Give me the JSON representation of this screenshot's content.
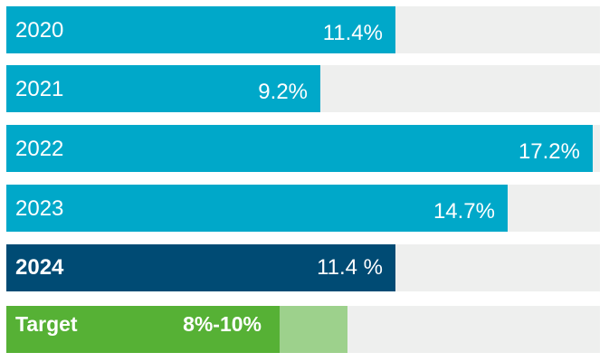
{
  "colors": {
    "track": "#eeefee",
    "history": "#00a8c9",
    "current": "#004b74",
    "target": "#56b135",
    "target_range": "#9dd18c"
  },
  "chart_data": {
    "type": "bar",
    "orientation": "horizontal",
    "title": "",
    "xlabel": "",
    "ylabel": "",
    "xlim": [
      0,
      17.4
    ],
    "grid": false,
    "legend": "none",
    "bars": [
      {
        "category": "2020",
        "value": 11.4,
        "label": "11.4%",
        "style": "history"
      },
      {
        "category": "2021",
        "value": 9.2,
        "label": "9.2%",
        "style": "history"
      },
      {
        "category": "2022",
        "value": 17.2,
        "label": "17.2%",
        "style": "history"
      },
      {
        "category": "2023",
        "value": 14.7,
        "label": "14.7%",
        "style": "history"
      },
      {
        "category": "2024",
        "value": 11.4,
        "label": "11.4 %",
        "style": "current"
      },
      {
        "category": "Target",
        "range": [
          8,
          10
        ],
        "label": "8%-10%",
        "style": "target"
      }
    ]
  }
}
